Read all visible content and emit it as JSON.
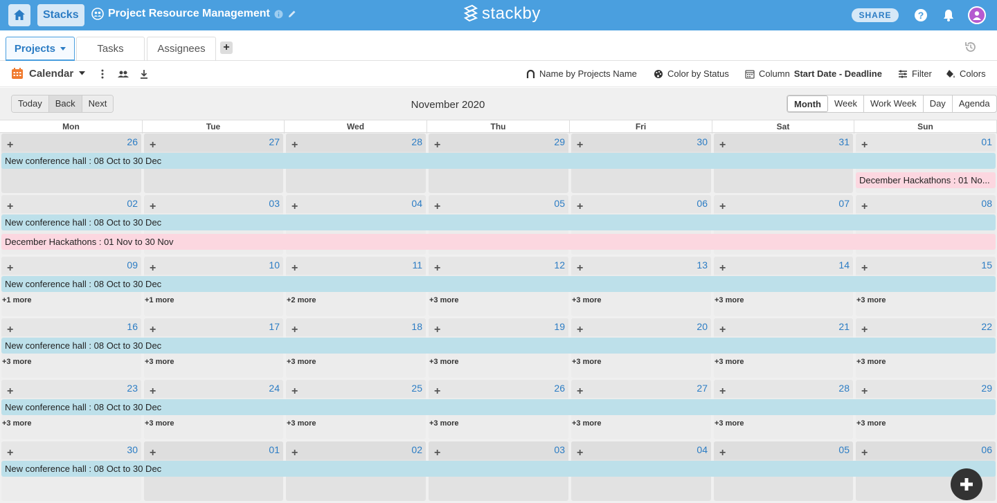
{
  "header": {
    "stacks_label": "Stacks",
    "project_title": "Project Resource Management",
    "logo_text": "stackby",
    "share_label": "SHARE"
  },
  "tabs": [
    {
      "label": "Projects",
      "active": true
    },
    {
      "label": "Tasks",
      "active": false
    },
    {
      "label": "Assignees",
      "active": false
    }
  ],
  "toolbar": {
    "view_label": "Calendar",
    "name_by": "Name by Projects Name",
    "color_by": "Color by Status",
    "column_prefix": "Column",
    "column_value": "Start Date - Deadline",
    "filter_label": "Filter",
    "colors_label": "Colors"
  },
  "calendar": {
    "nav_buttons": [
      "Today",
      "Back",
      "Next"
    ],
    "label": "November 2020",
    "views": [
      "Month",
      "Week",
      "Work Week",
      "Day",
      "Agenda"
    ],
    "selected_view": "Month",
    "days_of_week": [
      "Mon",
      "Tue",
      "Wed",
      "Thu",
      "Fri",
      "Sat",
      "Sun"
    ],
    "weeks": [
      {
        "dates": [
          "26",
          "27",
          "28",
          "29",
          "30",
          "31",
          "01"
        ],
        "off": [
          true,
          true,
          true,
          true,
          true,
          true,
          false
        ],
        "more": [
          "",
          "",
          "",
          "",
          "",
          "",
          ""
        ]
      },
      {
        "dates": [
          "02",
          "03",
          "04",
          "05",
          "06",
          "07",
          "08"
        ],
        "off": [
          false,
          false,
          false,
          false,
          false,
          false,
          false
        ],
        "more": [
          "",
          "",
          "",
          "",
          "",
          "",
          ""
        ]
      },
      {
        "dates": [
          "09",
          "10",
          "11",
          "12",
          "13",
          "14",
          "15"
        ],
        "off": [
          false,
          false,
          false,
          false,
          false,
          false,
          false
        ],
        "more": [
          "+1 more",
          "+1 more",
          "+2 more",
          "+3 more",
          "+3 more",
          "+3 more",
          "+3 more"
        ]
      },
      {
        "dates": [
          "16",
          "17",
          "18",
          "19",
          "20",
          "21",
          "22"
        ],
        "off": [
          false,
          false,
          false,
          false,
          false,
          false,
          false
        ],
        "more": [
          "+3 more",
          "+3 more",
          "+3 more",
          "+3 more",
          "+3 more",
          "+3 more",
          "+3 more"
        ]
      },
      {
        "dates": [
          "23",
          "24",
          "25",
          "26",
          "27",
          "28",
          "29"
        ],
        "off": [
          false,
          false,
          false,
          false,
          false,
          false,
          false
        ],
        "more": [
          "+3 more",
          "+3 more",
          "+3 more",
          "+3 more",
          "+3 more",
          "+3 more",
          "+3 more"
        ]
      },
      {
        "dates": [
          "30",
          "01",
          "02",
          "03",
          "04",
          "05",
          "06"
        ],
        "off": [
          false,
          true,
          true,
          true,
          true,
          true,
          true
        ],
        "more": [
          "",
          "",
          "",
          "",
          "",
          "",
          ""
        ]
      }
    ],
    "events": {
      "conference": "New conference hall : 08 Oct to 30 Dec",
      "hackathon_short": "December Hackathons : 01 No...",
      "hackathon_full": "December Hackathons : 01 Nov to 30 Nov"
    }
  },
  "colors": {
    "brand": "#4a9fdf",
    "event_blue": "#bde0ea",
    "event_pink": "#fcd7e0",
    "date_blue": "#2b7cc4"
  }
}
